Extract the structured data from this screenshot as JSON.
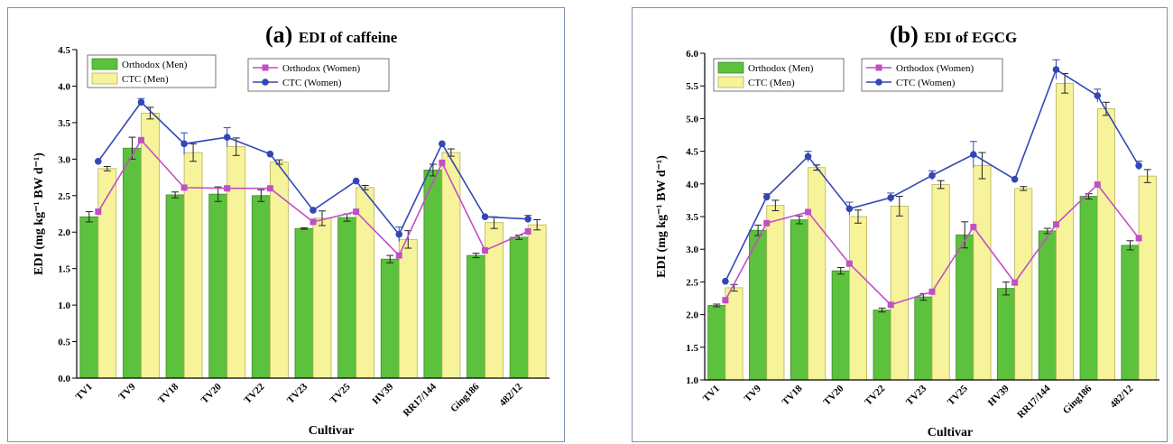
{
  "colors": {
    "orthodox_men": "#5cc13c",
    "ctc_men": "#f7f39a",
    "orthodox_women": "#c24fc4",
    "ctc_women": "#3347b5"
  },
  "chart_data": [
    {
      "type": "bar",
      "panel_letter": "(a)",
      "title": "EDI of caffeine",
      "xlabel": "Cultivar",
      "ylabel": "EDI (mg kg⁻¹ BW d⁻¹)",
      "ylim": [
        0,
        4.5
      ],
      "yticks": [
        "0.0",
        "0.5",
        "1.0",
        "1.5",
        "2.0",
        "2.5",
        "3.0",
        "3.5",
        "4.0",
        "4.5"
      ],
      "categories": [
        "TV1",
        "TV9",
        "TV18",
        "TV20",
        "TV22",
        "TV23",
        "TV25",
        "HV39",
        "RR17/144",
        "Ging186",
        "482/12"
      ],
      "bar_series": [
        {
          "name": "Orthodox (Men)",
          "values": [
            2.21,
            3.15,
            2.51,
            2.52,
            2.5,
            2.05,
            2.2,
            1.63,
            2.85,
            1.68,
            1.93
          ],
          "errors": [
            0.07,
            0.15,
            0.04,
            0.1,
            0.08,
            0.01,
            0.05,
            0.05,
            0.08,
            0.03,
            0.03
          ]
        },
        {
          "name": "CTC (Men)",
          "values": [
            2.87,
            3.63,
            3.09,
            3.17,
            2.96,
            2.19,
            2.61,
            1.9,
            3.09,
            2.13,
            2.1
          ],
          "errors": [
            0.03,
            0.08,
            0.12,
            0.12,
            0.03,
            0.1,
            0.03,
            0.12,
            0.05,
            0.08,
            0.07
          ]
        }
      ],
      "line_series": [
        {
          "name": "Orthodox (Women)",
          "values": [
            2.28,
            3.26,
            2.61,
            2.6,
            2.6,
            2.14,
            2.28,
            1.68,
            2.95,
            1.75,
            2.01
          ]
        },
        {
          "name": "CTC (Women)",
          "values": [
            2.97,
            3.78,
            3.21,
            3.3,
            3.07,
            2.3,
            2.7,
            1.97,
            3.21,
            2.21,
            2.18
          ],
          "errors": [
            0,
            0.05,
            0.15,
            0.13,
            0,
            0,
            0,
            0.1,
            0,
            0,
            0.05
          ]
        }
      ],
      "grid": false
    },
    {
      "type": "bar",
      "panel_letter": "(b)",
      "title": "EDI of EGCG",
      "xlabel": "Cultivar",
      "ylabel": "EDI (mg kg⁻¹ BW d⁻¹)",
      "ylim": [
        1.0,
        6.0
      ],
      "yticks": [
        "1.0",
        "1.5",
        "2.0",
        "2.5",
        "3.0",
        "3.5",
        "4.0",
        "4.5",
        "5.0",
        "5.5",
        "6.0"
      ],
      "categories": [
        "TV1",
        "TV9",
        "TV18",
        "TV20",
        "TV22",
        "TV23",
        "TV25",
        "HV39",
        "RR17/144",
        "Ging186",
        "482/12"
      ],
      "bar_series": [
        {
          "name": "Orthodox (Men)",
          "values": [
            2.14,
            3.29,
            3.45,
            2.67,
            2.07,
            2.27,
            3.22,
            2.4,
            3.28,
            3.81,
            3.06
          ],
          "errors": [
            0.02,
            0.08,
            0.06,
            0.05,
            0.03,
            0.05,
            0.2,
            0.1,
            0.04,
            0.04,
            0.07
          ]
        },
        {
          "name": "CTC (Men)",
          "values": [
            2.41,
            3.67,
            4.25,
            3.5,
            3.66,
            3.99,
            4.28,
            3.93,
            5.54,
            5.15,
            4.12
          ],
          "errors": [
            0.05,
            0.08,
            0.04,
            0.1,
            0.15,
            0.06,
            0.2,
            0.03,
            0.15,
            0.1,
            0.1
          ]
        }
      ],
      "line_series": [
        {
          "name": "Orthodox (Women)",
          "values": [
            2.22,
            3.4,
            3.57,
            2.78,
            2.15,
            2.35,
            3.34,
            2.49,
            3.38,
            3.99,
            3.17
          ]
        },
        {
          "name": "CTC (Women)",
          "values": [
            2.51,
            3.8,
            4.42,
            3.62,
            3.79,
            4.13,
            4.45,
            4.07,
            5.75,
            5.35,
            4.28
          ],
          "errors": [
            0,
            0.05,
            0.08,
            0.1,
            0.07,
            0.07,
            0.2,
            0,
            0.15,
            0.1,
            0.07
          ]
        }
      ],
      "grid": false
    }
  ]
}
